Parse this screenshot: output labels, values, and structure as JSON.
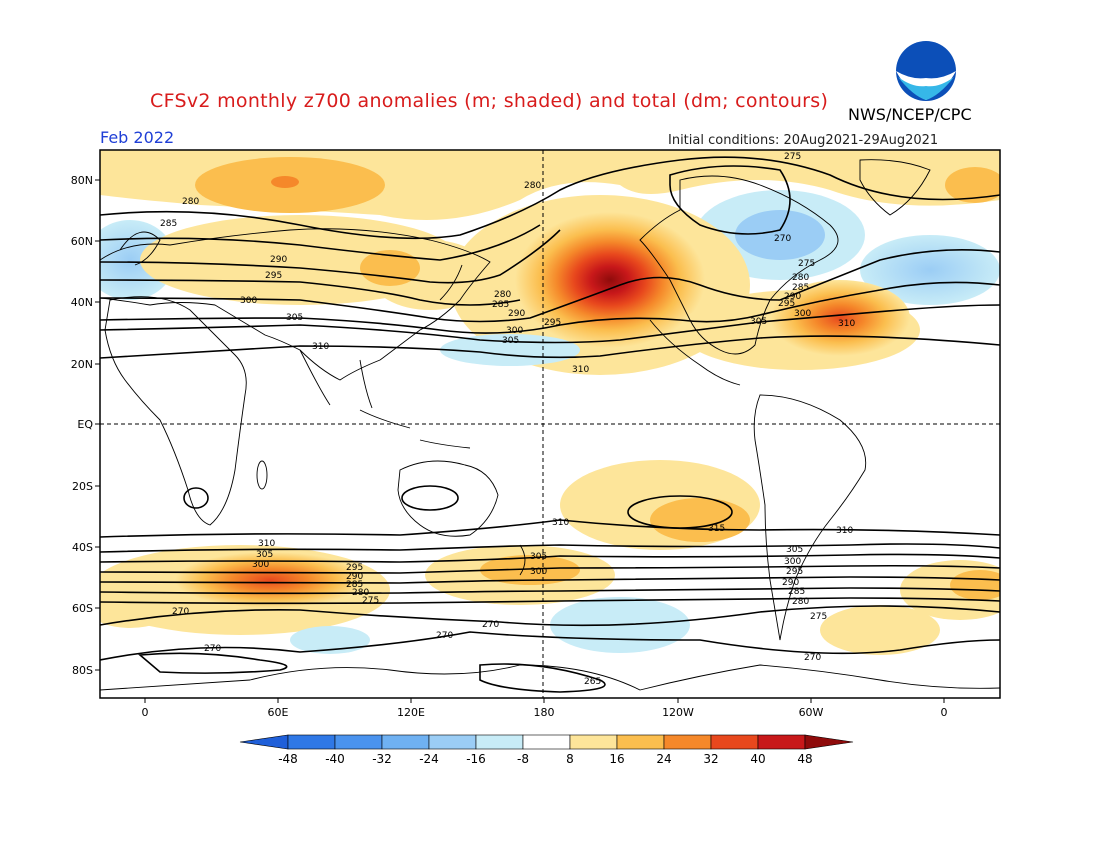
{
  "header": {
    "title": "CFSv2 monthly z700 anomalies (m; shaded) and total (dm; contours)",
    "agency": "NWS/NCEP/CPC",
    "month": "Feb 2022",
    "initial_conditions": "Initial conditions: 20Aug2021-29Aug2021",
    "logo_text": "NOAA"
  },
  "axes": {
    "lat_labels": [
      "80N",
      "60N",
      "40N",
      "20N",
      "EQ",
      "20S",
      "40S",
      "60S",
      "80S"
    ],
    "lon_labels": [
      "0",
      "60E",
      "120E",
      "180",
      "120W",
      "60W",
      "0"
    ]
  },
  "colorbar": {
    "ticks": [
      "-48",
      "-40",
      "-32",
      "-24",
      "-16",
      "-8",
      "8",
      "16",
      "24",
      "32",
      "40",
      "48"
    ],
    "colors": [
      "#1f5fd9",
      "#2f78e6",
      "#4a93ee",
      "#6fb1f2",
      "#9bcdf5",
      "#c8ecf7",
      "#ffffff",
      "#fde59a",
      "#fbbe4e",
      "#f5882a",
      "#e8481d",
      "#c8181a",
      "#8f0b0b"
    ]
  },
  "contour_labels": [
    "275",
    "280",
    "285",
    "290",
    "295",
    "300",
    "305",
    "310",
    "315",
    "270",
    "265"
  ],
  "features": {
    "pos_centers": [
      {
        "label": "North Pacific high anomaly",
        "lon": 205,
        "lat": 45,
        "value": 48
      },
      {
        "label": "North Atlantic high anomaly",
        "lon": 320,
        "lat": 38,
        "value": 32
      },
      {
        "label": "Southern Indian Ocean anomaly",
        "lon": 65,
        "lat": -50,
        "value": 32
      }
    ],
    "neg_centers": [
      {
        "label": "Canada / Greenland low anomaly",
        "lon": 280,
        "lat": 60,
        "value": -16
      },
      {
        "label": "North Atlantic / Europe low anomaly",
        "lon": 355,
        "lat": 55,
        "value": -16
      }
    ]
  }
}
